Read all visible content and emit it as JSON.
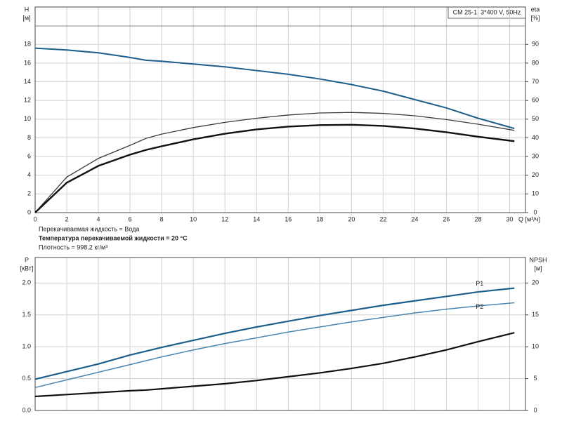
{
  "chart_data": [
    {
      "type": "line",
      "title": "CM 25-1, 3*400 V, 50Hz",
      "y_label": "H",
      "y_unit": "[м]",
      "y2_label": "eta",
      "y2_unit": "[%]",
      "x_label": "Q [м³/ч]",
      "annotations": [
        "Перекачиваемая жидкость = Вода",
        "Температура перекачиваемой жидкости = 20 °C",
        "Плотность = 998.2 кг/м³"
      ],
      "x": [
        0,
        2,
        4,
        6,
        7,
        8,
        10,
        12,
        14,
        16,
        18,
        20,
        22,
        24,
        26,
        28,
        30.3
      ],
      "xlim": [
        0,
        31
      ],
      "xticks": [
        0,
        2,
        4,
        6,
        8,
        10,
        12,
        14,
        16,
        18,
        20,
        22,
        24,
        26,
        28,
        30
      ],
      "ylim": [
        0,
        22
      ],
      "yticks": [
        0,
        2,
        4,
        6,
        8,
        10,
        12,
        14,
        16,
        18
      ],
      "y2lim": [
        0,
        110
      ],
      "y2ticks": [
        0,
        10,
        20,
        30,
        40,
        50,
        60,
        70,
        80,
        90
      ],
      "grid": true,
      "series": [
        {
          "color": "#1d5f8a",
          "values": [
            17.6,
            17.4,
            17.1,
            16.6,
            16.3,
            16.2,
            15.9,
            15.6,
            15.2,
            14.8,
            14.3,
            13.7,
            13.0,
            12.1,
            11.2,
            10.1,
            9.0
          ]
        },
        {
          "color": "#3a3a3a",
          "axis": "y2",
          "values": [
            0,
            19,
            29,
            36,
            39.7,
            42,
            45.5,
            48.3,
            50.5,
            52.2,
            53.3,
            53.6,
            53.1,
            51.8,
            49.8,
            47.3,
            44
          ]
        },
        {
          "color": "#111111",
          "axis": "y2",
          "values": [
            0,
            16,
            25,
            31,
            33.5,
            35.5,
            39.2,
            42.2,
            44.5,
            46,
            46.8,
            47,
            46.4,
            45,
            43,
            40.6,
            38.2
          ]
        }
      ]
    },
    {
      "type": "line",
      "y_label": "P",
      "y_unit": "[кВт]",
      "y2_label": "NPSH",
      "y2_unit": "[м]",
      "x": [
        0,
        2,
        4,
        6,
        7,
        8,
        10,
        12,
        14,
        16,
        18,
        20,
        22,
        24,
        26,
        28,
        30.3
      ],
      "xlim": [
        0,
        31
      ],
      "ylim": [
        0,
        2.4
      ],
      "yticks": [
        {
          "value": 0,
          "label": "0.0"
        },
        0.5,
        {
          "value": 1,
          "label": "1.0"
        },
        1.5,
        {
          "value": 2,
          "label": "2.0"
        }
      ],
      "y2lim": [
        0,
        24
      ],
      "y2ticks": [
        0,
        5,
        10,
        15,
        20
      ],
      "grid": true,
      "series": [
        {
          "name": "P1",
          "color": "#1d5f8a",
          "values": [
            0.49,
            0.61,
            0.73,
            0.87,
            0.93,
            0.99,
            1.1,
            1.21,
            1.31,
            1.4,
            1.49,
            1.57,
            1.65,
            1.72,
            1.79,
            1.86,
            1.92
          ]
        },
        {
          "name": "P2",
          "color": "#4a86b0",
          "values": [
            0.36,
            0.48,
            0.6,
            0.72,
            0.78,
            0.84,
            0.95,
            1.05,
            1.14,
            1.23,
            1.31,
            1.39,
            1.46,
            1.53,
            1.59,
            1.64,
            1.69
          ]
        },
        {
          "color": "#111111",
          "axis": "y2",
          "values": [
            2.2,
            2.5,
            2.8,
            3.1,
            3.2,
            3.4,
            3.8,
            4.2,
            4.7,
            5.3,
            5.9,
            6.6,
            7.4,
            8.4,
            9.5,
            10.8,
            12.2
          ]
        }
      ]
    }
  ]
}
